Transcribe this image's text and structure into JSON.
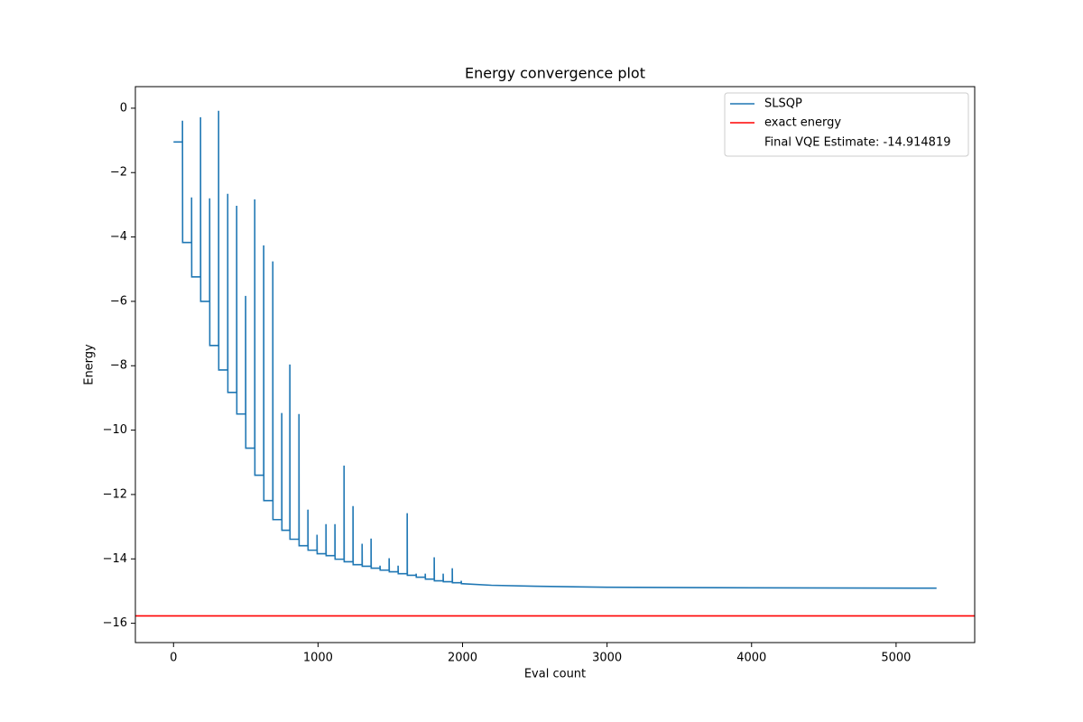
{
  "chart_data": {
    "type": "line",
    "title": "Energy convergence plot",
    "x_label": "Eval count",
    "y_label": "Energy",
    "xlim": [
      -264,
      5544
    ],
    "ylim": [
      -16.6,
      0.67
    ],
    "xticks": [
      0,
      1000,
      2000,
      3000,
      4000,
      5000
    ],
    "yticks": [
      0,
      {
        "value": -2,
        "label": "−2"
      },
      {
        "value": -4,
        "label": "−4"
      },
      {
        "value": -6,
        "label": "−6"
      },
      {
        "value": -8,
        "label": "−8"
      },
      {
        "value": -10,
        "label": "−10"
      },
      {
        "value": -12,
        "label": "−12"
      },
      {
        "value": -14,
        "label": "−14"
      },
      {
        "value": -16,
        "label": "−16"
      }
    ],
    "legend_position": "upper right",
    "legend_note": "Final VQE Estimate: -14.914819",
    "series": [
      {
        "name": "SLSQP",
        "color": "#1f77b4",
        "x": [
          0,
          62,
          62,
          63,
          125,
          125,
          126,
          187,
          187,
          188,
          250,
          250,
          251,
          312,
          312,
          313,
          375,
          375,
          376,
          437,
          437,
          438,
          499,
          499,
          500,
          562,
          562,
          563,
          624,
          624,
          625,
          687,
          687,
          688,
          749,
          749,
          750,
          805,
          805,
          806,
          868,
          868,
          869,
          930,
          930,
          931,
          993,
          993,
          994,
          1055,
          1055,
          1056,
          1117,
          1117,
          1118,
          1180,
          1180,
          1181,
          1242,
          1242,
          1243,
          1305,
          1305,
          1306,
          1367,
          1367,
          1368,
          1429,
          1429,
          1430,
          1492,
          1492,
          1493,
          1554,
          1554,
          1555,
          1617,
          1617,
          1618,
          1679,
          1679,
          1680,
          1742,
          1742,
          1743,
          1804,
          1804,
          1805,
          1866,
          1866,
          1867,
          1929,
          1929,
          1930,
          1991,
          1991,
          1992,
          2200,
          2500,
          3000,
          4000,
          5280
        ],
        "values": [
          -1.05,
          -1.05,
          -0.39,
          -4.17,
          -4.17,
          -2.77,
          -5.24,
          -5.24,
          -0.28,
          -6.0,
          -6.0,
          -2.8,
          -7.37,
          -7.37,
          -0.08,
          -8.13,
          -8.13,
          -2.66,
          -8.83,
          -8.83,
          -3.03,
          -9.5,
          -9.5,
          -5.83,
          -10.56,
          -10.56,
          -2.83,
          -11.4,
          -11.4,
          -4.26,
          -12.19,
          -12.19,
          -4.76,
          -12.78,
          -12.78,
          -9.47,
          -13.11,
          -13.11,
          -7.96,
          -13.39,
          -13.39,
          -9.5,
          -13.59,
          -13.59,
          -12.47,
          -13.73,
          -13.73,
          -13.25,
          -13.84,
          -13.84,
          -12.92,
          -13.9,
          -13.9,
          -12.92,
          -14.01,
          -14.01,
          -11.1,
          -14.09,
          -14.09,
          -12.36,
          -14.18,
          -14.18,
          -13.53,
          -14.23,
          -14.23,
          -13.37,
          -14.29,
          -14.29,
          -14.21,
          -14.35,
          -14.35,
          -13.98,
          -14.4,
          -14.4,
          -14.21,
          -14.46,
          -14.46,
          -12.58,
          -14.51,
          -14.51,
          -14.46,
          -14.57,
          -14.57,
          -14.46,
          -14.63,
          -14.63,
          -13.95,
          -14.68,
          -14.68,
          -14.46,
          -14.71,
          -14.71,
          -14.29,
          -14.74,
          -14.74,
          -14.68,
          -14.77,
          -14.82,
          -14.85,
          -14.88,
          -14.9,
          -14.91
        ]
      },
      {
        "name": "exact energy",
        "color": "#ff0000",
        "hline": -15.77
      }
    ]
  }
}
